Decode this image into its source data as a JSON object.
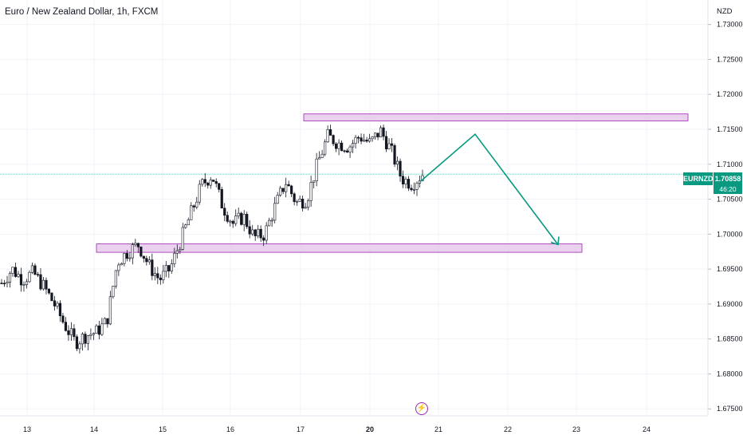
{
  "header": {
    "symbol_title": "Euro / New Zealand Dollar, 1h, FXCM"
  },
  "axis": {
    "currency": "NZD",
    "price_labels": [
      "1.73000",
      "1.72500",
      "1.72000",
      "1.71500",
      "1.71000",
      "1.70500",
      "1.70000",
      "1.69500",
      "1.69000",
      "1.68500",
      "1.68000",
      "1.67500"
    ],
    "date_labels": [
      "13",
      "14",
      "15",
      "16",
      "17",
      "20",
      "21",
      "22",
      "23",
      "24"
    ]
  },
  "badge": {
    "symbol": "EURNZD",
    "price": "1.70858",
    "countdown": "46:20"
  },
  "icons": {
    "event": "lightning-icon"
  },
  "colors": {
    "up": "#ffffff",
    "down": "#131722",
    "zone_fill": "#e1bee7",
    "zone_stroke": "#9c27b0",
    "projection": "#089981",
    "price_line": "#80cbc4"
  },
  "chart_data": {
    "type": "candlestick",
    "title": "Euro / New Zealand Dollar, 1h, FXCM",
    "ylabel": "NZD",
    "ylim": [
      1.674,
      1.7335
    ],
    "grid": true,
    "last_price": 1.70858,
    "dates": [
      "13",
      "14",
      "15",
      "16",
      "17",
      "20",
      "21",
      "22",
      "23",
      "24"
    ],
    "resistance_zone": {
      "from_date": "17",
      "to_date": "24",
      "low": 1.7162,
      "high": 1.7172
    },
    "support_zone": {
      "from_date": "14",
      "to_date": "23",
      "low": 1.6974,
      "high": 1.6986
    },
    "projection_path": [
      1.7075,
      1.7143,
      1.6985
    ],
    "price_path": [
      1.693,
      1.695,
      1.6935,
      1.6945,
      1.6925,
      1.69,
      1.687,
      1.6845,
      1.6855,
      1.686,
      1.6875,
      1.696,
      1.6975,
      1.6985,
      1.6955,
      1.6935,
      1.695,
      1.699,
      1.703,
      1.707,
      1.7085,
      1.704,
      1.7015,
      1.7025,
      1.6995,
      1.7,
      1.704,
      1.7075,
      1.7045,
      1.705,
      1.71,
      1.714,
      1.713,
      1.7125,
      1.714,
      1.713,
      1.7148,
      1.712,
      1.708,
      1.7072,
      1.7086
    ]
  }
}
